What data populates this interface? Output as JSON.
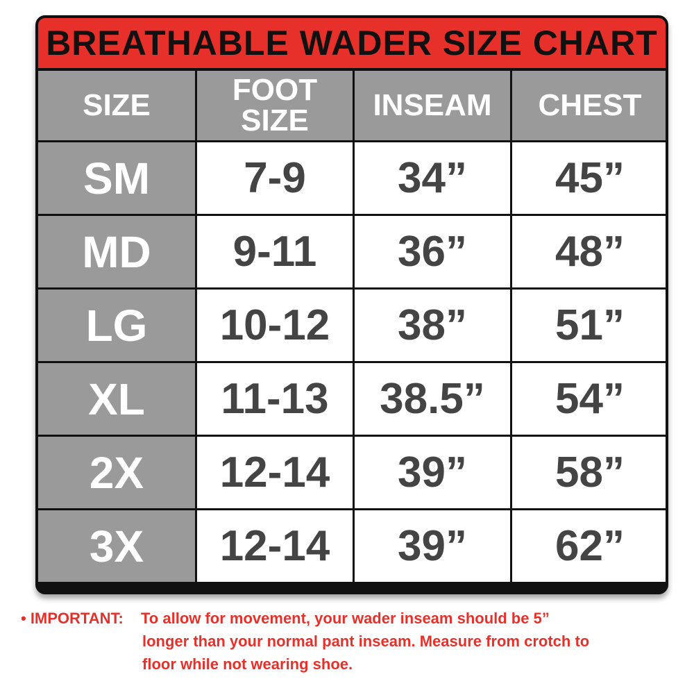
{
  "title": "BREATHABLE WADER SIZE CHART",
  "colors": {
    "title_bg": "#e8302a",
    "header_bg": "#9a9a9a",
    "value_text": "#444444",
    "note_text": "#e8302a"
  },
  "headers": [
    "SIZE",
    "FOOT SIZE",
    "INSEAM",
    "CHEST"
  ],
  "rows": [
    {
      "size": "SM",
      "foot": "7-9",
      "inseam": "34”",
      "chest": "45”"
    },
    {
      "size": "MD",
      "foot": "9-11",
      "inseam": "36”",
      "chest": "48”"
    },
    {
      "size": "LG",
      "foot": "10-12",
      "inseam": "38”",
      "chest": "51”"
    },
    {
      "size": "XL",
      "foot": "11-13",
      "inseam": "38.5”",
      "chest": "54”"
    },
    {
      "size": "2X",
      "foot": "12-14",
      "inseam": "39”",
      "chest": "58”"
    },
    {
      "size": "3X",
      "foot": "12-14",
      "inseam": "39”",
      "chest": "62”"
    }
  ],
  "note": {
    "label": "• IMPORTANT:",
    "line1": "To allow for movement, your wader inseam should be 5”",
    "line2": "longer than your normal pant inseam. Measure from crotch to",
    "line3": "floor while not wearing shoe."
  }
}
